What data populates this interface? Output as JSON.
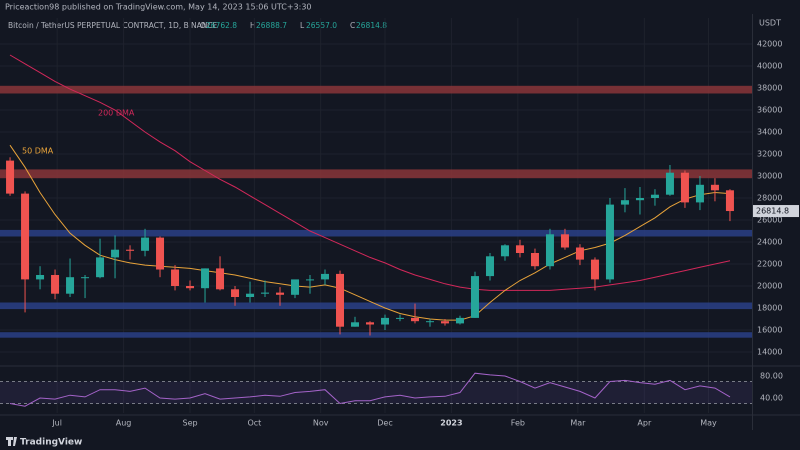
{
  "chart_data": {
    "type": "candlestick",
    "published": "Priceaction98 published on TradingView.com, May 14, 2023 15:06 UTC+3:30",
    "title": "Bitcoin / TetherUS PERPETUAL CONTRACT, 1D, BINANCE",
    "ohlc": [
      {
        "key": "O",
        "value": "26762.8"
      },
      {
        "key": "H",
        "value": "26888.7"
      },
      {
        "key": "L",
        "value": "26557.0"
      },
      {
        "key": "C",
        "value": "26814.8"
      }
    ],
    "price_unit": "USDT",
    "brand": "TradingView",
    "up_color": "#26a69a",
    "down_color": "#ef5350",
    "candles": {
      "open": [
        31400,
        28400,
        20600,
        21000,
        19300,
        20800,
        20800,
        22600,
        23300,
        23200,
        24400,
        21500,
        20000,
        19800,
        21600,
        19700,
        19000,
        19300,
        19400,
        19200,
        20600,
        20600,
        21100,
        16300,
        16700,
        16500,
        17100,
        17100,
        16800,
        16800,
        16600,
        17100,
        20900,
        22700,
        23700,
        23000,
        21800,
        24700,
        23500,
        22400,
        20600,
        27400,
        27800,
        28000,
        28300,
        30300,
        27600,
        29200,
        28700
      ],
      "high": [
        31700,
        28600,
        21800,
        21500,
        22500,
        21000,
        24300,
        24600,
        23700,
        25200,
        24500,
        21900,
        20500,
        21600,
        22700,
        20000,
        20400,
        20500,
        19900,
        19700,
        21000,
        21500,
        21400,
        17200,
        16800,
        17400,
        17400,
        18400,
        17000,
        17000,
        17300,
        21300,
        23000,
        23800,
        24200,
        23400,
        25200,
        25200,
        23800,
        22600,
        28000,
        28900,
        29000,
        28800,
        31000,
        30500,
        30000,
        29800,
        28800
      ],
      "low": [
        28200,
        17600,
        19700,
        18800,
        19000,
        18900,
        20700,
        20700,
        22400,
        22700,
        20800,
        19600,
        19600,
        18500,
        19600,
        18200,
        18500,
        19000,
        18200,
        18900,
        19300,
        20100,
        15600,
        16300,
        15500,
        16000,
        16800,
        16600,
        16300,
        16400,
        16500,
        17100,
        20500,
        22300,
        22600,
        21500,
        21500,
        23300,
        21900,
        19600,
        20300,
        26700,
        26500,
        27300,
        28200,
        27100,
        26900,
        27700,
        25900
      ],
      "close": [
        28400,
        20600,
        21000,
        19300,
        20800,
        20800,
        22600,
        23300,
        23200,
        24400,
        21500,
        20000,
        19800,
        21600,
        19700,
        19000,
        19300,
        19400,
        19200,
        20600,
        20600,
        21100,
        16300,
        16700,
        16500,
        17100,
        17100,
        16800,
        16800,
        16600,
        17100,
        20900,
        22700,
        23700,
        23000,
        21800,
        24700,
        23500,
        22400,
        20600,
        27400,
        27800,
        28000,
        28300,
        30300,
        27600,
        29200,
        28700,
        26814.8
      ]
    },
    "series": [
      {
        "name": "200 DMA",
        "color": "#d2285a",
        "values": [
          41000,
          40200,
          39400,
          38600,
          37900,
          37300,
          36700,
          36000,
          35000,
          34000,
          33100,
          32300,
          31300,
          30500,
          29700,
          29000,
          28200,
          27400,
          26600,
          25800,
          25000,
          24400,
          23800,
          23200,
          22600,
          22100,
          21500,
          21000,
          20600,
          20200,
          19900,
          19700,
          19600,
          19600,
          19600,
          19600,
          19600,
          19700,
          19800,
          19900,
          20100,
          20300,
          20500,
          20800,
          21100,
          21400,
          21700,
          22000,
          22300
        ]
      },
      {
        "name": "50 DMA",
        "color": "#e8a33a",
        "values": [
          32800,
          30800,
          28500,
          26500,
          24800,
          23700,
          22800,
          22400,
          22100,
          21900,
          21800,
          21700,
          21600,
          21400,
          21200,
          21000,
          20700,
          20400,
          20200,
          20000,
          19900,
          20100,
          19800,
          19200,
          18600,
          18000,
          17500,
          17200,
          17000,
          16900,
          16900,
          17300,
          18500,
          19600,
          20500,
          21200,
          22000,
          22600,
          23200,
          23500,
          23900,
          24600,
          25400,
          26200,
          27200,
          27900,
          28300,
          28500,
          28400
        ]
      }
    ],
    "zones": [
      {
        "low": 37500,
        "high": 38200,
        "color": "#8a3538"
      },
      {
        "low": 29800,
        "high": 30600,
        "color": "#8a3538"
      },
      {
        "low": 24500,
        "high": 25100,
        "color": "#2a3f86"
      },
      {
        "low": 17900,
        "high": 18500,
        "color": "#2a3f86"
      },
      {
        "low": 15300,
        "high": 15800,
        "color": "#2a3f86"
      }
    ],
    "ylim": [
      12818,
      44364
    ],
    "yticks": [
      14000,
      16000,
      18000,
      20000,
      22000,
      24000,
      26000,
      28000,
      30000,
      32000,
      34000,
      36000,
      38000,
      40000,
      42000
    ],
    "xlim": [
      -0.67,
      49.47
    ],
    "xticks": [
      {
        "value": 3.14,
        "label": "Jul"
      },
      {
        "value": 7.57,
        "label": "Aug"
      },
      {
        "value": 12.0,
        "label": "Sep"
      },
      {
        "value": 16.29,
        "label": "Oct"
      },
      {
        "value": 20.71,
        "label": "Nov"
      },
      {
        "value": 25.0,
        "label": "Dec"
      },
      {
        "value": 29.43,
        "label": "2023"
      },
      {
        "value": 33.86,
        "label": "Feb"
      },
      {
        "value": 37.86,
        "label": "Mar"
      },
      {
        "value": 42.29,
        "label": "Apr"
      },
      {
        "value": 46.57,
        "label": "May"
      }
    ],
    "rsi": {
      "color": "#a463c9",
      "values": [
        30,
        25,
        40,
        38,
        45,
        42,
        55,
        55,
        52,
        58,
        40,
        38,
        40,
        48,
        38,
        40,
        42,
        45,
        43,
        50,
        52,
        55,
        30,
        35,
        35,
        42,
        45,
        40,
        42,
        43,
        50,
        85,
        82,
        80,
        70,
        58,
        68,
        60,
        52,
        40,
        70,
        72,
        68,
        65,
        72,
        55,
        62,
        58,
        42
      ],
      "ylim": [
        12.7,
        94.5
      ],
      "yticks": [
        {
          "value": 40,
          "label": "40.00"
        },
        {
          "value": 80,
          "label": "80.00"
        }
      ],
      "levels": [
        30,
        70
      ]
    }
  }
}
